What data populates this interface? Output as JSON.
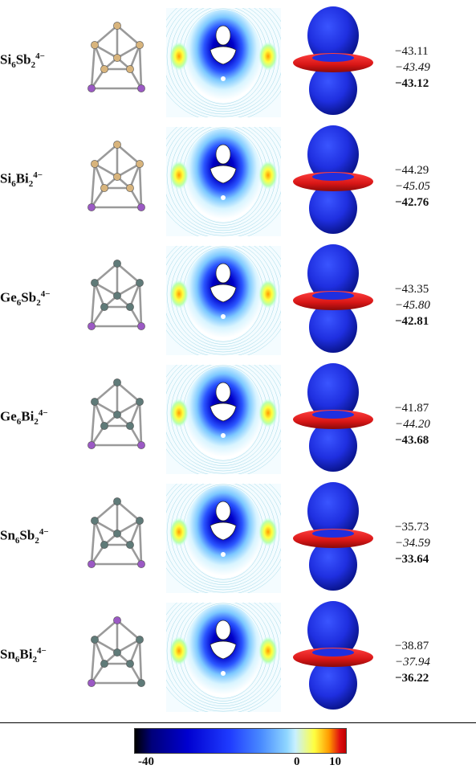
{
  "rows": [
    {
      "formula": {
        "el1": "Si",
        "n1": "6",
        "el2": "Sb",
        "n2": "2",
        "charge": "4−"
      },
      "values": [
        "−43.11",
        "−43.49",
        "−43.12"
      ],
      "atom_colors": {
        "cage": "#d8b47c",
        "dopant": "#9b59c4"
      }
    },
    {
      "formula": {
        "el1": "Si",
        "n1": "6",
        "el2": "Bi",
        "n2": "2",
        "charge": "4−"
      },
      "values": [
        "−44.29",
        "−45.05",
        "−42.76"
      ],
      "atom_colors": {
        "cage": "#d8b47c",
        "dopant": "#9b59c4"
      }
    },
    {
      "formula": {
        "el1": "Ge",
        "n1": "6",
        "el2": "Sb",
        "n2": "2",
        "charge": "4−"
      },
      "values": [
        "−43.35",
        "−45.80",
        "−42.81"
      ],
      "atom_colors": {
        "cage": "#5f7a78",
        "dopant": "#9b59c4"
      }
    },
    {
      "formula": {
        "el1": "Ge",
        "n1": "6",
        "el2": "Bi",
        "n2": "2",
        "charge": "4−"
      },
      "values": [
        "−41.87",
        "−44.20",
        "−43.68"
      ],
      "atom_colors": {
        "cage": "#5f7a78",
        "dopant": "#9b59c4"
      }
    },
    {
      "formula": {
        "el1": "Sn",
        "n1": "6",
        "el2": "Sb",
        "n2": "2",
        "charge": "4−"
      },
      "values": [
        "−35.73",
        "−34.59",
        "−33.64"
      ],
      "atom_colors": {
        "cage": "#5f7a78",
        "dopant": "#9b59c4"
      }
    },
    {
      "formula": {
        "el1": "Sn",
        "n1": "6",
        "el2": "Bi",
        "n2": "2",
        "charge": "4−"
      },
      "values": [
        "−38.87",
        "−37.94",
        "−36.22"
      ],
      "atom_colors": {
        "cage": "#5f7a78",
        "dopant": "#9b59c4"
      }
    }
  ],
  "colorbar": {
    "min_label": "-40",
    "zero_label": "0",
    "max_label": "10",
    "range": [
      -40,
      10
    ]
  },
  "colors": {
    "shield_blue": "#1f2fe0",
    "deshield_red": "#d81616"
  }
}
